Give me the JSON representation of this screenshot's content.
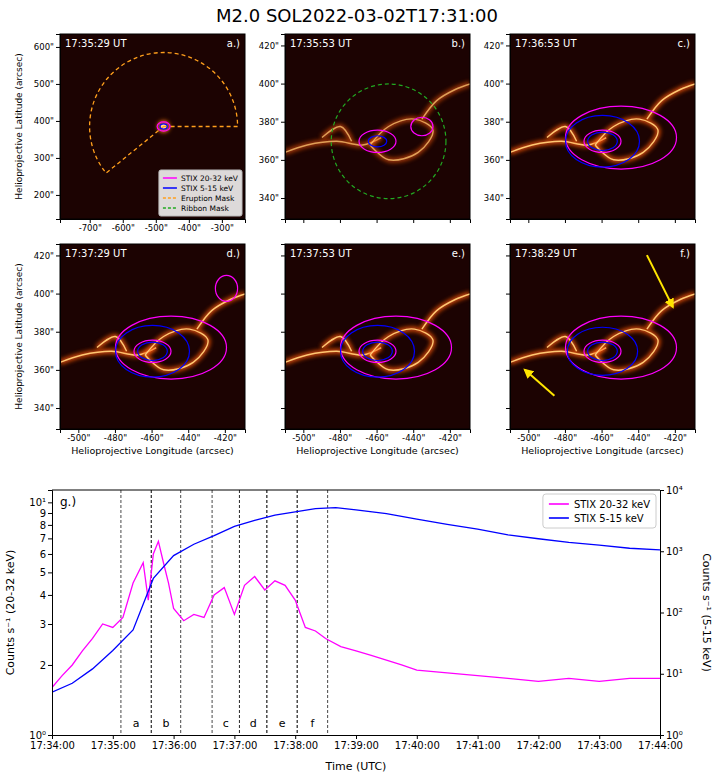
{
  "title": "M2.0 SOL2022-03-02T17:31:00",
  "panels": [
    {
      "label": "a.)",
      "time": "17:35:29 UT",
      "xlim": [
        -790,
        -230
      ],
      "ylim": [
        135,
        635
      ],
      "xticks": [
        {
          "value": -700,
          "label": "-700\""
        },
        {
          "value": -600,
          "label": "-600\""
        },
        {
          "value": -500,
          "label": "-500\""
        },
        {
          "value": -400,
          "label": "-400\""
        },
        {
          "value": -300,
          "label": "-300\""
        }
      ],
      "yticks": [
        {
          "value": 200,
          "label": "200\""
        },
        {
          "value": 300,
          "label": "300\""
        },
        {
          "value": 400,
          "label": "400\""
        },
        {
          "value": 500,
          "label": "500\""
        },
        {
          "value": 600,
          "label": "600\""
        }
      ],
      "tick_labels": true,
      "ylabel": "Helioprojective Latitude (arcsec)"
    },
    {
      "label": "b.)",
      "time": "17:35:53 UT",
      "xlim": [
        -510,
        -409
      ],
      "ylim": [
        329,
        426
      ],
      "xticks": [
        {
          "value": -500,
          "label": "-500\""
        },
        {
          "value": -480,
          "label": "-480\""
        },
        {
          "value": -460,
          "label": "-460\""
        },
        {
          "value": -440,
          "label": "-440\""
        },
        {
          "value": -420,
          "label": "-420\""
        }
      ],
      "yticks": [
        {
          "value": 340,
          "label": "340\""
        },
        {
          "value": 360,
          "label": "360\""
        },
        {
          "value": 380,
          "label": "380\""
        },
        {
          "value": 400,
          "label": "400\""
        },
        {
          "value": 420,
          "label": "420\""
        }
      ],
      "tick_labels": "y"
    },
    {
      "label": "c.)",
      "time": "17:36:53 UT",
      "xlim": [
        -510,
        -409
      ],
      "ylim": [
        329,
        426
      ],
      "xticks": [
        {
          "value": -500,
          "label": "-500\""
        },
        {
          "value": -480,
          "label": "-480\""
        },
        {
          "value": -460,
          "label": "-460\""
        },
        {
          "value": -440,
          "label": "-440\""
        },
        {
          "value": -420,
          "label": "-420\""
        }
      ],
      "yticks": [
        {
          "value": 340,
          "label": "340\""
        },
        {
          "value": 360,
          "label": "360\""
        },
        {
          "value": 380,
          "label": "380\""
        },
        {
          "value": 400,
          "label": "400\""
        },
        {
          "value": 420,
          "label": "420\""
        }
      ],
      "tick_labels": "y"
    },
    {
      "label": "d.)",
      "time": "17:37:29 UT",
      "xlim": [
        -510,
        -409
      ],
      "ylim": [
        329,
        426
      ],
      "xticks": [
        {
          "value": -500,
          "label": "-500\""
        },
        {
          "value": -480,
          "label": "-480\""
        },
        {
          "value": -460,
          "label": "-460\""
        },
        {
          "value": -440,
          "label": "-440\""
        },
        {
          "value": -420,
          "label": "-420\""
        }
      ],
      "yticks": [
        {
          "value": 340,
          "label": "340\""
        },
        {
          "value": 360,
          "label": "360\""
        },
        {
          "value": 380,
          "label": "380\""
        },
        {
          "value": 400,
          "label": "400\""
        },
        {
          "value": 420,
          "label": "420\""
        }
      ],
      "tick_labels": true,
      "ylabel": "Helioprojective Latitude (arcsec)",
      "xlabel": "Helioprojective Longitude (arcsec)"
    },
    {
      "label": "e.)",
      "time": "17:37:53 UT",
      "xlim": [
        -510,
        -409
      ],
      "ylim": [
        329,
        426
      ],
      "xticks": [
        {
          "value": -500,
          "label": "-500\""
        },
        {
          "value": -480,
          "label": "-480\""
        },
        {
          "value": -460,
          "label": "-460\""
        },
        {
          "value": -440,
          "label": "-440\""
        },
        {
          "value": -420,
          "label": "-420\""
        }
      ],
      "yticks": [
        {
          "value": 340,
          "label": "340\""
        },
        {
          "value": 360,
          "label": "360\""
        },
        {
          "value": 380,
          "label": "380\""
        },
        {
          "value": 400,
          "label": "400\""
        },
        {
          "value": 420,
          "label": "420\""
        }
      ],
      "tick_labels": "x",
      "xlabel": "Helioprojective Longitude (arcsec)"
    },
    {
      "label": "f.)",
      "time": "17:38:29 UT",
      "xlim": [
        -510,
        -409
      ],
      "ylim": [
        329,
        426
      ],
      "xticks": [
        {
          "value": -500,
          "label": "-500\""
        },
        {
          "value": -480,
          "label": "-480\""
        },
        {
          "value": -460,
          "label": "-460\""
        },
        {
          "value": -440,
          "label": "-440\""
        },
        {
          "value": -420,
          "label": "-420\""
        }
      ],
      "yticks": [
        {
          "value": 340,
          "label": "340\""
        },
        {
          "value": 360,
          "label": "360\""
        },
        {
          "value": 380,
          "label": "380\""
        },
        {
          "value": 400,
          "label": "400\""
        },
        {
          "value": 420,
          "label": "420\""
        }
      ],
      "tick_labels": "x",
      "xlabel": "Helioprojective Longitude (arcsec)"
    }
  ],
  "mask_legend": [
    {
      "name": "STIX 20-32 keV",
      "color": "#ff00ff",
      "line_style": "solid"
    },
    {
      "name": "STIX 5-15 keV",
      "color": "#0000ff",
      "line_style": "solid"
    },
    {
      "name": "Eruption Mask",
      "color": "#ff9f1c",
      "line_style": "dashed"
    },
    {
      "name": "Ribbon Mask",
      "color": "#22aa22",
      "line_style": "dashed"
    }
  ],
  "chart_data": {
    "type": "line",
    "label": "g.)",
    "x_label": "Time (UTC)",
    "y_label": "Counts s⁻¹ (20-32 keV)",
    "y2_label": "Counts s⁻¹ (5-15 keV)",
    "log": "y",
    "legend": "upper right",
    "xlim": [
      "17:34:00",
      "17:44:00"
    ],
    "xticks": [
      "17:34:00",
      "17:35:00",
      "17:36:00",
      "17:37:00",
      "17:38:00",
      "17:39:00",
      "17:40:00",
      "17:41:00",
      "17:42:00",
      "17:43:00",
      "17:44:00"
    ],
    "ylim": [
      1,
      11.3
    ],
    "yticks": [
      {
        "value": 1,
        "label": "10⁰"
      },
      2,
      3,
      4,
      5,
      6,
      7,
      8,
      9,
      {
        "value": 10,
        "label": "10¹"
      }
    ],
    "y2lim": [
      1,
      10000
    ],
    "y2ticks": [
      {
        "value": 1,
        "label": "10⁰"
      },
      {
        "value": 10,
        "label": "10¹"
      },
      {
        "value": 100,
        "label": "10²"
      },
      {
        "value": 1000,
        "label": "10³"
      },
      {
        "value": 10000,
        "label": "10⁴"
      }
    ],
    "series": [
      {
        "name": "STIX 20-32 keV",
        "color": "#ff00ff",
        "x": [
          "17:34:00",
          "17:34:10",
          "17:34:20",
          "17:34:30",
          "17:34:40",
          "17:34:50",
          "17:35:00",
          "17:35:10",
          "17:35:20",
          "17:35:30",
          "17:35:35",
          "17:35:40",
          "17:35:45",
          "17:35:50",
          "17:35:55",
          "17:36:00",
          "17:36:10",
          "17:36:20",
          "17:36:30",
          "17:36:40",
          "17:36:50",
          "17:37:00",
          "17:37:10",
          "17:37:20",
          "17:37:30",
          "17:37:40",
          "17:37:50",
          "17:38:00",
          "17:38:10",
          "17:38:20",
          "17:38:30",
          "17:38:45",
          "17:39:00",
          "17:39:15",
          "17:39:30",
          "17:39:45",
          "17:40:00",
          "17:40:30",
          "17:41:00",
          "17:41:30",
          "17:42:00",
          "17:42:30",
          "17:43:00",
          "17:43:30",
          "17:44:00"
        ],
        "values": [
          1.6,
          1.8,
          2.0,
          2.3,
          2.6,
          3.0,
          2.9,
          3.2,
          4.5,
          5.5,
          3.8,
          6.0,
          6.8,
          5.5,
          4.5,
          3.5,
          3.1,
          3.3,
          3.2,
          4.0,
          4.3,
          3.3,
          4.4,
          4.8,
          4.2,
          4.6,
          4.4,
          3.8,
          2.9,
          2.8,
          2.6,
          2.4,
          2.3,
          2.2,
          2.1,
          2.0,
          1.9,
          1.85,
          1.8,
          1.75,
          1.7,
          1.75,
          1.7,
          1.75,
          1.75
        ]
      },
      {
        "name": "STIX 5-15 keV",
        "color": "#0000ff",
        "axis": "y2",
        "x": [
          "17:34:00",
          "17:34:20",
          "17:34:40",
          "17:35:00",
          "17:35:20",
          "17:35:40",
          "17:36:00",
          "17:36:20",
          "17:36:40",
          "17:37:00",
          "17:37:20",
          "17:37:40",
          "17:38:00",
          "17:38:20",
          "17:38:40",
          "17:39:00",
          "17:39:30",
          "17:40:00",
          "17:40:30",
          "17:41:00",
          "17:41:30",
          "17:42:00",
          "17:42:30",
          "17:43:00",
          "17:43:30",
          "17:44:00"
        ],
        "values": [
          5,
          7,
          12,
          24,
          52,
          360,
          850,
          1300,
          1800,
          2550,
          3200,
          3900,
          4400,
          4950,
          5150,
          4750,
          4100,
          3350,
          2750,
          2300,
          1850,
          1600,
          1400,
          1260,
          1120,
          1050
        ]
      }
    ],
    "windows": [
      {
        "label": "a",
        "start": "17:35:08",
        "end": "17:35:38"
      },
      {
        "label": "b",
        "start": "17:35:38",
        "end": "17:36:07"
      },
      {
        "label": "c",
        "start": "17:36:38",
        "end": "17:37:05"
      },
      {
        "label": "d",
        "start": "17:37:05",
        "end": "17:37:32"
      },
      {
        "label": "e",
        "start": "17:37:32",
        "end": "17:38:02"
      },
      {
        "label": "f",
        "start": "17:38:02",
        "end": "17:38:32"
      }
    ]
  }
}
